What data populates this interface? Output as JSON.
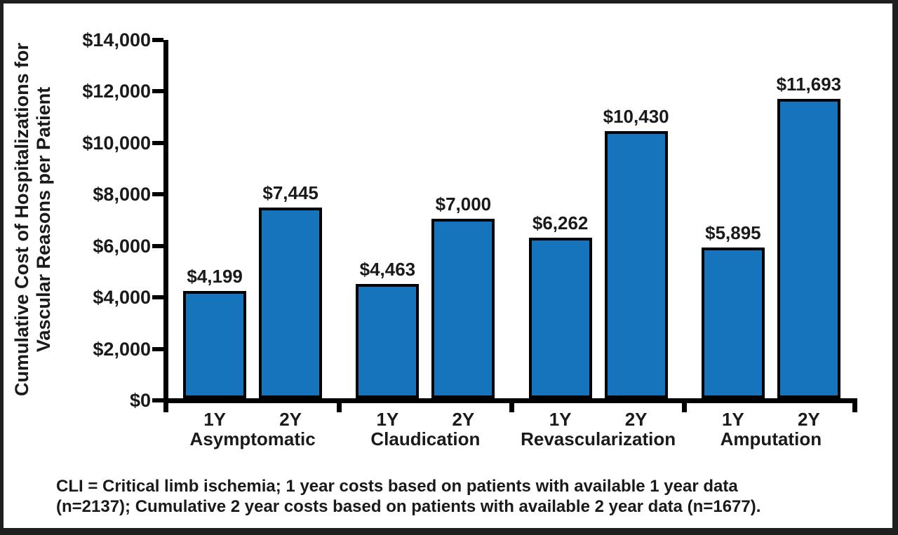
{
  "chart_data": {
    "type": "bar",
    "title": "",
    "ylabel": "Cumulative Cost of Hospitalizations for Vascular Reasons per Patient",
    "ylabel_lines": [
      "Cumulative Cost of Hospitalizations for",
      "Vascular Reasons per Patient"
    ],
    "xlabel": "",
    "ylim": [
      0,
      14000
    ],
    "grid": "off",
    "legend": "none",
    "bar_color": "#1574BC",
    "bar_border_color": "#000000",
    "yticks": [
      {
        "value": 0,
        "label": "$0"
      },
      {
        "value": 2000,
        "label": "$2,000"
      },
      {
        "value": 4000,
        "label": "$4,000"
      },
      {
        "value": 6000,
        "label": "$6,000"
      },
      {
        "value": 8000,
        "label": "$8,000"
      },
      {
        "value": 10000,
        "label": "$10,000"
      },
      {
        "value": 12000,
        "label": "$12,000"
      },
      {
        "value": 14000,
        "label": "$14,000"
      }
    ],
    "groups": [
      {
        "label": "Asymptomatic",
        "bars": [
          {
            "period": "1Y",
            "value": 4199,
            "value_label": "$4,199"
          },
          {
            "period": "2Y",
            "value": 7445,
            "value_label": "$7,445"
          }
        ]
      },
      {
        "label": "Claudication",
        "bars": [
          {
            "period": "1Y",
            "value": 4463,
            "value_label": "$4,463"
          },
          {
            "period": "2Y",
            "value": 7000,
            "value_label": "$7,000"
          }
        ]
      },
      {
        "label": "Revascularization",
        "bars": [
          {
            "period": "1Y",
            "value": 6262,
            "value_label": "$6,262"
          },
          {
            "period": "2Y",
            "value": 10430,
            "value_label": "$10,430"
          }
        ]
      },
      {
        "label": "Amputation",
        "bars": [
          {
            "period": "1Y",
            "value": 5895,
            "value_label": "$5,895"
          },
          {
            "period": "2Y",
            "value": 11693,
            "value_label": "$11,693"
          }
        ]
      }
    ]
  },
  "footnote": {
    "line1": "CLI = Critical limb ischemia; 1 year costs based on patients with available 1 year data",
    "line2": "(n=2137); Cumulative 2 year costs based on patients with available 2 year data (n=1677)."
  }
}
